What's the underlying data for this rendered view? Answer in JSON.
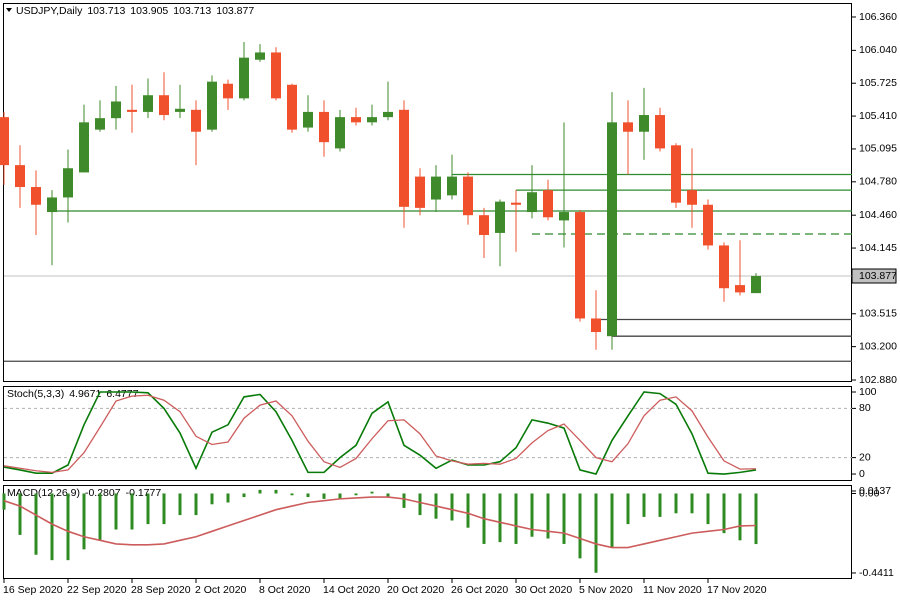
{
  "chart_data": [
    {
      "type": "candlestick",
      "title": "USDJPY,Daily",
      "categories": [
        "16 Sep 2020",
        null,
        null,
        null,
        "22 Sep 2020",
        null,
        null,
        null,
        "28 Sep 2020",
        null,
        null,
        null,
        "2 Oct 2020",
        null,
        null,
        null,
        "8 Oct 2020",
        null,
        null,
        null,
        "14 Oct 2020",
        null,
        null,
        null,
        "20 Oct 2020",
        null,
        null,
        null,
        "26 Oct 2020",
        null,
        null,
        null,
        "30 Oct 2020",
        null,
        null,
        null,
        "5 Nov 2020",
        null,
        null,
        null,
        "11 Nov 2020",
        null,
        null,
        null,
        "17 Nov 2020",
        null,
        null,
        null
      ],
      "open": [
        105.4,
        104.94,
        104.73,
        104.49,
        104.63,
        104.87,
        105.28,
        105.39,
        105.47,
        105.45,
        105.61,
        105.45,
        105.47,
        105.28,
        105.72,
        105.58,
        105.95,
        106.02,
        105.71,
        105.3,
        105.45,
        105.1,
        105.4,
        105.35,
        105.4,
        105.47,
        104.83,
        104.61,
        104.65,
        104.83,
        104.46,
        104.29,
        104.58,
        104.49,
        104.7,
        104.41,
        104.49,
        103.47,
        103.3,
        105.35,
        105.26,
        105.42,
        105.13,
        104.7,
        104.56,
        104.17,
        103.79,
        103.713
      ],
      "high": [
        105.45,
        105.13,
        104.89,
        104.7,
        105.09,
        105.52,
        105.56,
        105.7,
        105.71,
        105.77,
        105.83,
        105.71,
        105.56,
        105.8,
        105.76,
        106.12,
        106.1,
        106.07,
        105.72,
        105.61,
        105.56,
        105.47,
        105.49,
        105.52,
        105.74,
        105.56,
        104.91,
        104.94,
        105.04,
        104.87,
        104.53,
        104.61,
        104.7,
        104.94,
        104.8,
        105.35,
        104.51,
        103.74,
        105.64,
        105.56,
        105.68,
        105.49,
        105.15,
        105.1,
        104.61,
        104.2,
        104.22,
        103.905
      ],
      "low": [
        104.75,
        104.53,
        104.27,
        103.98,
        104.39,
        104.87,
        105.26,
        105.28,
        105.25,
        105.39,
        105.37,
        105.39,
        104.94,
        105.26,
        105.47,
        105.56,
        105.93,
        105.56,
        105.25,
        105.26,
        105.02,
        105.07,
        105.32,
        105.32,
        105.37,
        104.34,
        104.46,
        104.49,
        104.61,
        104.37,
        104.05,
        103.97,
        104.11,
        104.43,
        104.41,
        104.15,
        103.44,
        103.17,
        103.17,
        104.85,
        104.99,
        105.07,
        104.53,
        104.34,
        104.13,
        103.63,
        103.69,
        103.713
      ],
      "close": [
        104.94,
        104.73,
        104.56,
        104.63,
        104.91,
        105.35,
        105.39,
        105.55,
        105.45,
        105.61,
        105.42,
        105.48,
        105.26,
        105.74,
        105.58,
        105.97,
        106.02,
        105.58,
        105.28,
        105.45,
        105.16,
        105.4,
        105.35,
        105.4,
        105.45,
        104.54,
        104.53,
        104.83,
        104.83,
        104.46,
        104.27,
        104.59,
        104.56,
        104.68,
        104.44,
        104.49,
        103.47,
        103.34,
        105.35,
        105.26,
        105.42,
        105.1,
        104.58,
        104.56,
        104.17,
        103.76,
        103.72,
        103.877
      ],
      "up_color": "#3f8a2a",
      "down_color": "#f0502c",
      "ylim": [
        102.861,
        106.494
      ],
      "yticks": [
        {
          "value": 106.36,
          "label": "106.360"
        },
        {
          "value": 106.04,
          "label": "106.040"
        },
        105.725,
        {
          "value": 105.41,
          "label": "105.410"
        },
        105.095,
        {
          "value": 104.78,
          "label": "104.780"
        },
        {
          "value": 104.46,
          "label": "104.460"
        },
        104.145,
        {
          "value": 103.83,
          "label": "103.830"
        },
        103.515,
        {
          "value": 103.2,
          "label": "103.200"
        },
        {
          "value": 102.88,
          "label": "102.880"
        }
      ],
      "levels": [
        {
          "value": 104.85,
          "color": "#2e8b2e",
          "style": "solid",
          "start": 28
        },
        {
          "value": 104.7,
          "color": "#2e8b2e",
          "style": "solid",
          "start": 32
        },
        {
          "value": 104.5,
          "color": "#2e8b2e",
          "style": "solid",
          "start": 3
        },
        {
          "value": 104.28,
          "color": "#2e8b2e",
          "style": "dashed",
          "start": 33
        },
        {
          "value": 103.46,
          "color": "#444444",
          "style": "solid",
          "start": 37
        },
        {
          "value": 103.3,
          "color": "#444444",
          "style": "solid",
          "start": 38
        },
        {
          "value": 103.06,
          "color": "#444444",
          "style": "solid",
          "start": 0
        }
      ]
    },
    {
      "type": "line",
      "title": "Stoch(5,3,3)",
      "series": [
        {
          "color": "#087a08",
          "values": [
            8.5,
            5,
            1,
            1,
            11,
            60,
            100,
            100,
            100,
            99,
            80,
            50,
            7,
            51,
            60,
            94,
            97,
            76,
            41,
            2,
            2,
            20,
            35,
            74,
            88,
            35,
            23,
            7,
            17,
            11,
            11,
            15,
            32,
            66,
            62,
            56,
            5,
            0,
            41,
            71,
            100,
            98,
            85,
            49,
            1,
            0,
            2,
            4.9671
          ]
        },
        {
          "color": "#cd5c5c",
          "values": [
            10,
            7,
            4,
            2,
            5,
            26,
            57,
            89,
            95,
            96,
            90,
            76,
            46,
            36,
            39,
            68,
            84,
            89,
            71,
            40,
            15,
            8,
            19,
            43,
            65,
            66,
            49,
            22,
            16,
            12,
            13,
            12,
            19,
            38,
            53,
            61,
            41,
            20,
            15,
            37,
            71,
            90,
            94,
            77,
            45,
            16,
            6,
            6.4777
          ]
        }
      ],
      "ylim": [
        -8.5,
        107.3
      ],
      "yticks": [
        100,
        80,
        20,
        0
      ],
      "levels": [
        80,
        20
      ]
    },
    {
      "type": "bar",
      "title": "MACD(12,26,9)",
      "series": [
        {
          "color": "#2e8b22",
          "values": [
            -0.09,
            -0.23,
            -0.34,
            -0.37,
            -0.37,
            -0.31,
            -0.26,
            -0.2,
            -0.2,
            -0.17,
            -0.17,
            -0.12,
            -0.12,
            -0.06,
            -0.05,
            -0.02,
            0.02,
            0.02,
            -0.01,
            -0.02,
            -0.03,
            -0.03,
            -0.01,
            0.01,
            -0.02,
            -0.08,
            -0.12,
            -0.14,
            -0.15,
            -0.19,
            -0.28,
            -0.27,
            -0.28,
            -0.24,
            -0.25,
            -0.28,
            -0.36,
            -0.44,
            -0.3,
            -0.17,
            -0.13,
            -0.13,
            -0.11,
            -0.11,
            -0.17,
            -0.22,
            -0.26,
            -0.2807
          ]
        },
        {
          "color": "#cd5c5c",
          "style": "line",
          "values": [
            -0.04,
            -0.07,
            -0.12,
            -0.17,
            -0.21,
            -0.24,
            -0.26,
            -0.28,
            -0.285,
            -0.285,
            -0.28,
            -0.26,
            -0.24,
            -0.21,
            -0.18,
            -0.15,
            -0.12,
            -0.09,
            -0.07,
            -0.05,
            -0.04,
            -0.03,
            -0.025,
            -0.02,
            -0.02,
            -0.03,
            -0.05,
            -0.07,
            -0.09,
            -0.11,
            -0.14,
            -0.16,
            -0.18,
            -0.2,
            -0.21,
            -0.22,
            -0.25,
            -0.28,
            -0.3,
            -0.3,
            -0.28,
            -0.26,
            -0.24,
            -0.22,
            -0.21,
            -0.2,
            -0.18,
            -0.1777
          ]
        }
      ],
      "ylim": [
        -0.469,
        0.047
      ],
      "yticks": [
        0.0137,
        {
          "value": 0,
          "label": "0.00"
        },
        -0.4411
      ]
    }
  ]
}
